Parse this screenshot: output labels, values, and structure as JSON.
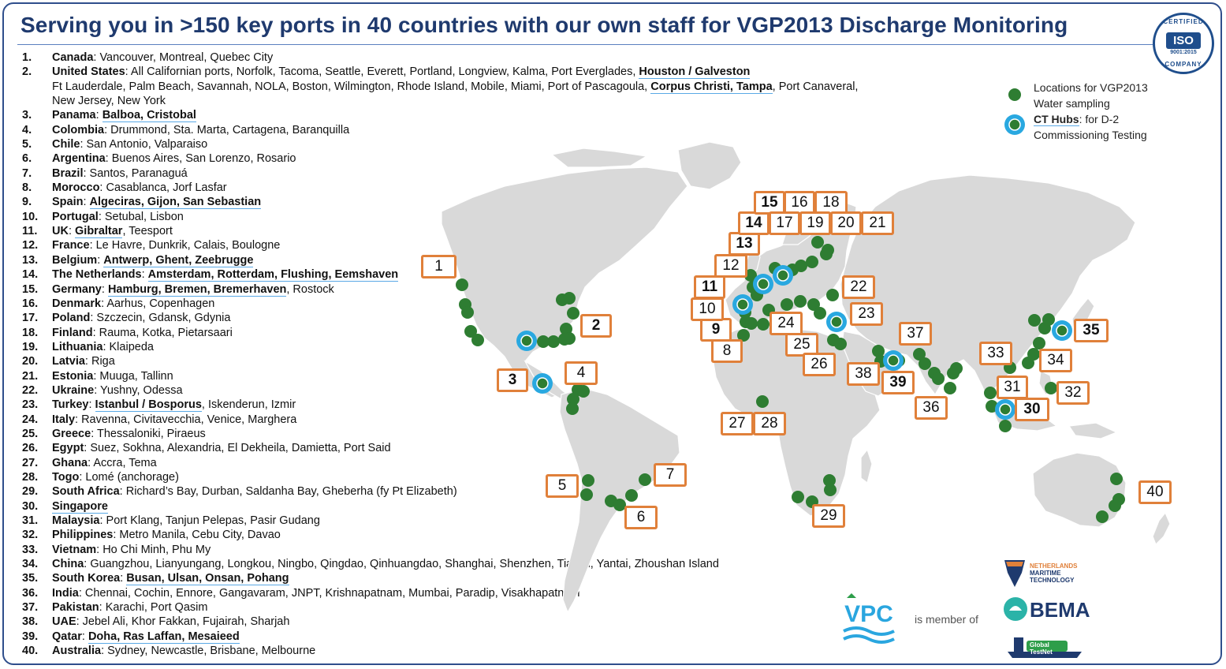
{
  "title": "Serving you in >150 key ports in 40 countries with our own staff for VGP2013 Discharge Monitoring",
  "iso_badge": {
    "top": "CERTIFIED",
    "main": "ISO",
    "standard": "9001:2015",
    "bottom": "COMPANY"
  },
  "legend": {
    "green_label_line1": "Locations for VGP2013",
    "green_label_line2": "Water sampling",
    "hub_label_bold": "CT Hubs",
    "hub_label_rest": ": for D-2",
    "hub_label_line2": "Commissioning Testing"
  },
  "colors": {
    "title": "#1f3a6e",
    "border": "#2f4e8c",
    "box_border": "#e0803a",
    "dot": "#2e7d32",
    "hub": "#29a8e0",
    "land": "#d9d9d9"
  },
  "countries": [
    {
      "num": "1.",
      "name": "Canada",
      "ports": ": Vancouver, Montreal, Quebec City"
    },
    {
      "num": "2.",
      "name": "United States",
      "ports": ": All Californian ports, Norfolk, Tacoma, Seattle, Everett, Portland, Longview, Kalma, Port Everglades, ",
      "hubs": "Houston / Galveston"
    },
    {
      "num": "",
      "name": "",
      "ports": "Ft Lauderdale, Palm Beach, Savannah, NOLA, Boston, Wilmington, Rhode Island, Mobile, Miami, Port of Pascagoula, ",
      "hubs": "Corpus Christi, Tampa",
      "after": ", Port Canaveral,"
    },
    {
      "num": "",
      "name": "",
      "ports": "New Jersey, New York"
    },
    {
      "num": "3.",
      "name": "Panama",
      "ports": ": ",
      "hubs": "Balboa, Cristobal"
    },
    {
      "num": "4.",
      "name": "Colombia",
      "ports": ": Drummond, Sta. Marta, Cartagena, Baranquilla"
    },
    {
      "num": "5.",
      "name": "Chile",
      "ports": ": San Antonio, Valparaiso"
    },
    {
      "num": "6.",
      "name": "Argentina",
      "ports": ": Buenos Aires, San Lorenzo, Rosario"
    },
    {
      "num": "7.",
      "name": "Brazil",
      "ports": ": Santos, Paranaguá"
    },
    {
      "num": "8.",
      "name": "Morocco",
      "ports": ": Casablanca, Jorf Lasfar"
    },
    {
      "num": "9.",
      "name": "Spain",
      "ports": ": ",
      "hubs": "Algeciras, Gijon, San Sebastian"
    },
    {
      "num": "10.",
      "name": "Portugal",
      "ports": ": Setubal, Lisbon"
    },
    {
      "num": "11.",
      "name": "UK",
      "ports": ": ",
      "hubs": "Gibraltar",
      "after": ", Teesport"
    },
    {
      "num": "12.",
      "name": "France",
      "ports": ": Le Havre, Dunkrik, Calais, Boulogne"
    },
    {
      "num": "13.",
      "name": "Belgium",
      "ports": ": ",
      "hubs": "Antwerp, Ghent, Zeebrugge"
    },
    {
      "num": "14.",
      "name": "The Netherlands",
      "ports": ": ",
      "hubs": "Amsterdam, Rotterdam, Flushing, Eemshaven"
    },
    {
      "num": "15.",
      "name": "Germany",
      "ports": ": ",
      "hubs": "Hamburg, Bremen, Bremerhaven",
      "after": ", Rostock"
    },
    {
      "num": "16.",
      "name": "Denmark",
      "ports": ": Aarhus, Copenhagen"
    },
    {
      "num": "17.",
      "name": "Poland",
      "ports": ": Szczecin, Gdansk, Gdynia"
    },
    {
      "num": "18.",
      "name": "Finland",
      "ports": ": Rauma, Kotka, Pietarsaari"
    },
    {
      "num": "19.",
      "name": "Lithuania",
      "ports": ": Klaipeda"
    },
    {
      "num": "20.",
      "name": "Latvia",
      "ports": ": Riga"
    },
    {
      "num": "21.",
      "name": "Estonia",
      "ports": ": Muuga, Tallinn"
    },
    {
      "num": "22.",
      "name": "Ukraine",
      "ports": ": Yushny, Odessa"
    },
    {
      "num": "23.",
      "name": "Turkey",
      "ports": ": ",
      "hubs": "Istanbul / Bosporus",
      "after": ", Iskenderun, Izmir"
    },
    {
      "num": "24.",
      "name": "Italy",
      "ports": ": Ravenna, Civitavecchia, Venice, Marghera"
    },
    {
      "num": "25.",
      "name": "Greece",
      "ports": ": Thessaloniki, Piraeus"
    },
    {
      "num": "26.",
      "name": "Egypt",
      "ports": ": Suez, Sokhna, Alexandria, El Dekheila, Damietta, Port Said"
    },
    {
      "num": "27.",
      "name": "Ghana",
      "ports": ": Accra, Tema"
    },
    {
      "num": "28.",
      "name": "Togo",
      "ports": ": Lomé (anchorage)"
    },
    {
      "num": "29.",
      "name": "South Africa",
      "ports": ": Richard’s Bay, Durban, Saldanha Bay, Gheberha (fy Pt Elizabeth)"
    },
    {
      "num": "30.",
      "name": "",
      "ports": "",
      "hubs": "Singapore"
    },
    {
      "num": "31.",
      "name": "Malaysia",
      "ports": ": Port Klang, Tanjun Pelepas, Pasir Gudang"
    },
    {
      "num": "32.",
      "name": "Philippines",
      "ports": ": Metro Manila, Cebu City, Davao"
    },
    {
      "num": "33.",
      "name": "Vietnam",
      "ports": ": Ho Chi Minh, Phu My"
    },
    {
      "num": "34.",
      "name": "China",
      "ports": ": Guangzhou, Lianyungang, Longkou, Ningbo, Qingdao, Qinhuangdao, Shanghai, Shenzhen, Tianjin, Yantai, Zhoushan Island"
    },
    {
      "num": "35.",
      "name": "South Korea",
      "ports": ": ",
      "hubs": "Busan, Ulsan, Onsan, Pohang"
    },
    {
      "num": "36.",
      "name": "India",
      "ports": ": Chennai, Cochin, Ennore, Gangavaram, JNPT, Krishnapatnam, Mumbai, Paradip, Visakhapatnam"
    },
    {
      "num": "37.",
      "name": "Pakistan",
      "ports": ": Karachi, Port Qasim"
    },
    {
      "num": "38.",
      "name": "UAE",
      "ports": ": Jebel Ali, Khor Fakkan, Fujairah, Sharjah"
    },
    {
      "num": "39.",
      "name": "Qatar",
      "ports": ": ",
      "hubs": "Doha, Ras Laffan, Mesaieed"
    },
    {
      "num": "40.",
      "name": "Australia",
      "ports": ": Sydney, Newcastle, Brisbane, Melbourne"
    }
  ],
  "map_labels": [
    {
      "id": "1",
      "text": "1",
      "bold": false
    },
    {
      "id": "2",
      "text": "2",
      "bold": true
    },
    {
      "id": "3",
      "text": "3",
      "bold": true
    },
    {
      "id": "4",
      "text": "4",
      "bold": false
    },
    {
      "id": "5",
      "text": "5",
      "bold": false
    },
    {
      "id": "6",
      "text": "6",
      "bold": false
    },
    {
      "id": "7",
      "text": "7",
      "bold": false
    },
    {
      "id": "8",
      "text": "8",
      "bold": false
    },
    {
      "id": "9",
      "text": "9",
      "bold": true
    },
    {
      "id": "10",
      "text": "10",
      "bold": false
    },
    {
      "id": "11",
      "text": "11",
      "bold": true
    },
    {
      "id": "12",
      "text": "12",
      "bold": false
    },
    {
      "id": "13",
      "text": "13",
      "bold": true
    },
    {
      "id": "14",
      "text": "14",
      "bold": true
    },
    {
      "id": "15",
      "text": "15",
      "bold": true
    },
    {
      "id": "16",
      "text": "16",
      "bold": false
    },
    {
      "id": "17",
      "text": "17",
      "bold": false
    },
    {
      "id": "18",
      "text": "18",
      "bold": false
    },
    {
      "id": "19",
      "text": "19",
      "bold": false
    },
    {
      "id": "20",
      "text": "20",
      "bold": false
    },
    {
      "id": "21",
      "text": "21",
      "bold": false
    },
    {
      "id": "22",
      "text": "22",
      "bold": false
    },
    {
      "id": "23",
      "text": "23",
      "bold": false
    },
    {
      "id": "24",
      "text": "24",
      "bold": false
    },
    {
      "id": "25",
      "text": "25",
      "bold": false
    },
    {
      "id": "26",
      "text": "26",
      "bold": false
    },
    {
      "id": "27",
      "text": "27",
      "bold": false
    },
    {
      "id": "28",
      "text": "28",
      "bold": false
    },
    {
      "id": "29",
      "text": "29",
      "bold": false
    },
    {
      "id": "30",
      "text": "30",
      "bold": true
    },
    {
      "id": "31",
      "text": "31",
      "bold": false
    },
    {
      "id": "32",
      "text": "32",
      "bold": false
    },
    {
      "id": "33",
      "text": "33",
      "bold": false
    },
    {
      "id": "34",
      "text": "34",
      "bold": false
    },
    {
      "id": "35",
      "text": "35",
      "bold": true
    },
    {
      "id": "36",
      "text": "36",
      "bold": false
    },
    {
      "id": "37",
      "text": "37",
      "bold": false
    },
    {
      "id": "38",
      "text": "38",
      "bold": false
    },
    {
      "id": "39",
      "text": "39",
      "bold": true
    },
    {
      "id": "40",
      "text": "40",
      "bold": false
    }
  ],
  "member_text": "is member of",
  "logos": {
    "vpc": "VPC",
    "nmt_line1": "NETHERLANDS",
    "nmt_line2": "MARITIME",
    "nmt_line3": "TECHNOLOGY",
    "bema": "BEMA",
    "gtn_line1": "Global",
    "gtn_line2": "TestNet"
  }
}
